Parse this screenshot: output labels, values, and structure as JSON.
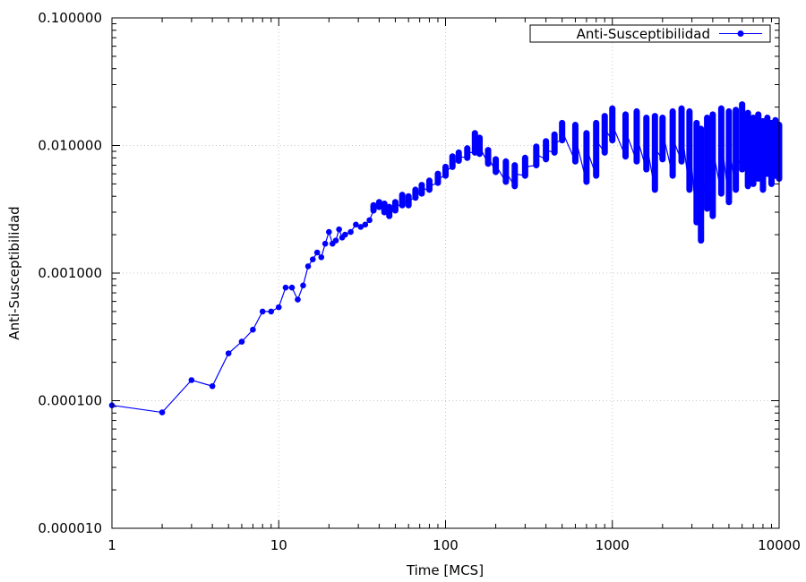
{
  "chart_data": {
    "type": "line",
    "title": "",
    "xlabel": "Time [MCS]",
    "ylabel": "Anti-Susceptibilidad",
    "xscale": "log",
    "yscale": "log",
    "xlim": [
      1,
      10000
    ],
    "ylim": [
      1e-05,
      0.1
    ],
    "grid": true,
    "legend_position": "top-right",
    "x_ticks": [
      "1",
      "10",
      "100",
      "1000",
      "10000"
    ],
    "y_ticks": [
      "0.000010",
      "0.000100",
      "0.001000",
      "0.010000",
      "0.100000"
    ],
    "series": [
      {
        "name": "Anti-Susceptibilidad",
        "color": "#0000ff",
        "marker": "circle",
        "x": [
          1,
          2,
          3,
          4,
          5,
          6,
          7,
          8,
          9,
          10,
          11,
          12,
          13,
          14,
          15,
          16,
          17,
          18,
          19,
          20,
          21,
          22,
          23,
          24,
          25,
          27,
          29,
          31,
          33,
          35,
          37,
          40,
          43,
          46,
          50,
          55,
          60,
          66,
          72,
          80,
          90,
          100,
          110,
          120,
          135,
          150,
          160,
          180,
          200,
          230,
          260,
          300,
          350,
          400,
          450,
          500,
          600,
          700,
          800,
          900,
          1000,
          1200,
          1400,
          1600,
          1800,
          2000,
          2300,
          2600,
          2900,
          3200,
          3400,
          3700,
          4000,
          4500,
          5000,
          5500,
          6000,
          6500,
          7000,
          7500,
          8000,
          8500,
          9000,
          9500,
          10000
        ],
        "y": [
          9.2e-05,
          8.1e-05,
          0.000145,
          0.00013,
          0.000235,
          0.00029,
          0.00036,
          0.0005,
          0.0005,
          0.00054,
          0.00077,
          0.00077,
          0.00062,
          0.0008,
          0.00113,
          0.00128,
          0.00145,
          0.00133,
          0.0017,
          0.0021,
          0.0017,
          0.0018,
          0.0022,
          0.0019,
          0.002,
          0.0021,
          0.0024,
          0.0023,
          0.0024,
          0.0026,
          0.0033,
          0.0035,
          0.0032,
          0.003,
          0.0034,
          0.0038,
          0.0037,
          0.0042,
          0.0046,
          0.0048,
          0.0055,
          0.0063,
          0.0074,
          0.0082,
          0.0088,
          0.0105,
          0.0098,
          0.0082,
          0.007,
          0.0062,
          0.006,
          0.0068,
          0.0085,
          0.0092,
          0.0105,
          0.013,
          0.0115,
          0.0095,
          0.011,
          0.0135,
          0.0145,
          0.013,
          0.0118,
          0.0105,
          0.0095,
          0.0128,
          0.0115,
          0.0135,
          0.0112,
          0.0063,
          0.0072,
          0.0105,
          0.0095,
          0.0115,
          0.0102,
          0.0085,
          0.013,
          0.0095,
          0.0112,
          0.0088,
          0.0105,
          0.011,
          0.0092,
          0.0102,
          0.0098
        ],
        "y_high": [
          9.2e-05,
          8.1e-05,
          0.000145,
          0.00013,
          0.000235,
          0.00029,
          0.00036,
          0.0005,
          0.0005,
          0.00054,
          0.00077,
          0.00077,
          0.00062,
          0.0008,
          0.00113,
          0.00128,
          0.00145,
          0.00133,
          0.0017,
          0.0021,
          0.0017,
          0.0018,
          0.0022,
          0.0019,
          0.002,
          0.0021,
          0.0024,
          0.0023,
          0.0024,
          0.0026,
          0.0034,
          0.0036,
          0.0035,
          0.0033,
          0.0036,
          0.0041,
          0.004,
          0.0045,
          0.0049,
          0.0053,
          0.006,
          0.0068,
          0.0082,
          0.0088,
          0.0095,
          0.0125,
          0.0115,
          0.0092,
          0.0078,
          0.0075,
          0.007,
          0.008,
          0.0098,
          0.0108,
          0.0122,
          0.015,
          0.0145,
          0.0125,
          0.015,
          0.017,
          0.0195,
          0.0175,
          0.0185,
          0.0165,
          0.017,
          0.0165,
          0.0185,
          0.0195,
          0.0185,
          0.015,
          0.0135,
          0.0165,
          0.0175,
          0.0195,
          0.0185,
          0.019,
          0.021,
          0.018,
          0.0165,
          0.0175,
          0.0155,
          0.0165,
          0.015,
          0.0158,
          0.0145
        ],
        "y_low": [
          9.2e-05,
          8.1e-05,
          0.000145,
          0.00013,
          0.000235,
          0.00029,
          0.00036,
          0.0005,
          0.0005,
          0.00054,
          0.00077,
          0.00077,
          0.00062,
          0.0008,
          0.00113,
          0.00128,
          0.00145,
          0.00133,
          0.0017,
          0.0021,
          0.0017,
          0.0018,
          0.0022,
          0.0019,
          0.002,
          0.0021,
          0.0024,
          0.0023,
          0.0024,
          0.0026,
          0.0031,
          0.0033,
          0.003,
          0.0028,
          0.0031,
          0.0034,
          0.0034,
          0.0039,
          0.0042,
          0.0045,
          0.0051,
          0.0058,
          0.0068,
          0.0076,
          0.008,
          0.0088,
          0.0086,
          0.0072,
          0.0062,
          0.0052,
          0.0048,
          0.0058,
          0.007,
          0.0078,
          0.0088,
          0.011,
          0.0075,
          0.0052,
          0.0058,
          0.0088,
          0.011,
          0.0082,
          0.0075,
          0.0065,
          0.0045,
          0.0078,
          0.0058,
          0.0075,
          0.0045,
          0.0025,
          0.0018,
          0.0032,
          0.0028,
          0.0042,
          0.0036,
          0.0045,
          0.0065,
          0.0048,
          0.005,
          0.0055,
          0.0045,
          0.006,
          0.005,
          0.0058,
          0.0055
        ]
      }
    ]
  }
}
